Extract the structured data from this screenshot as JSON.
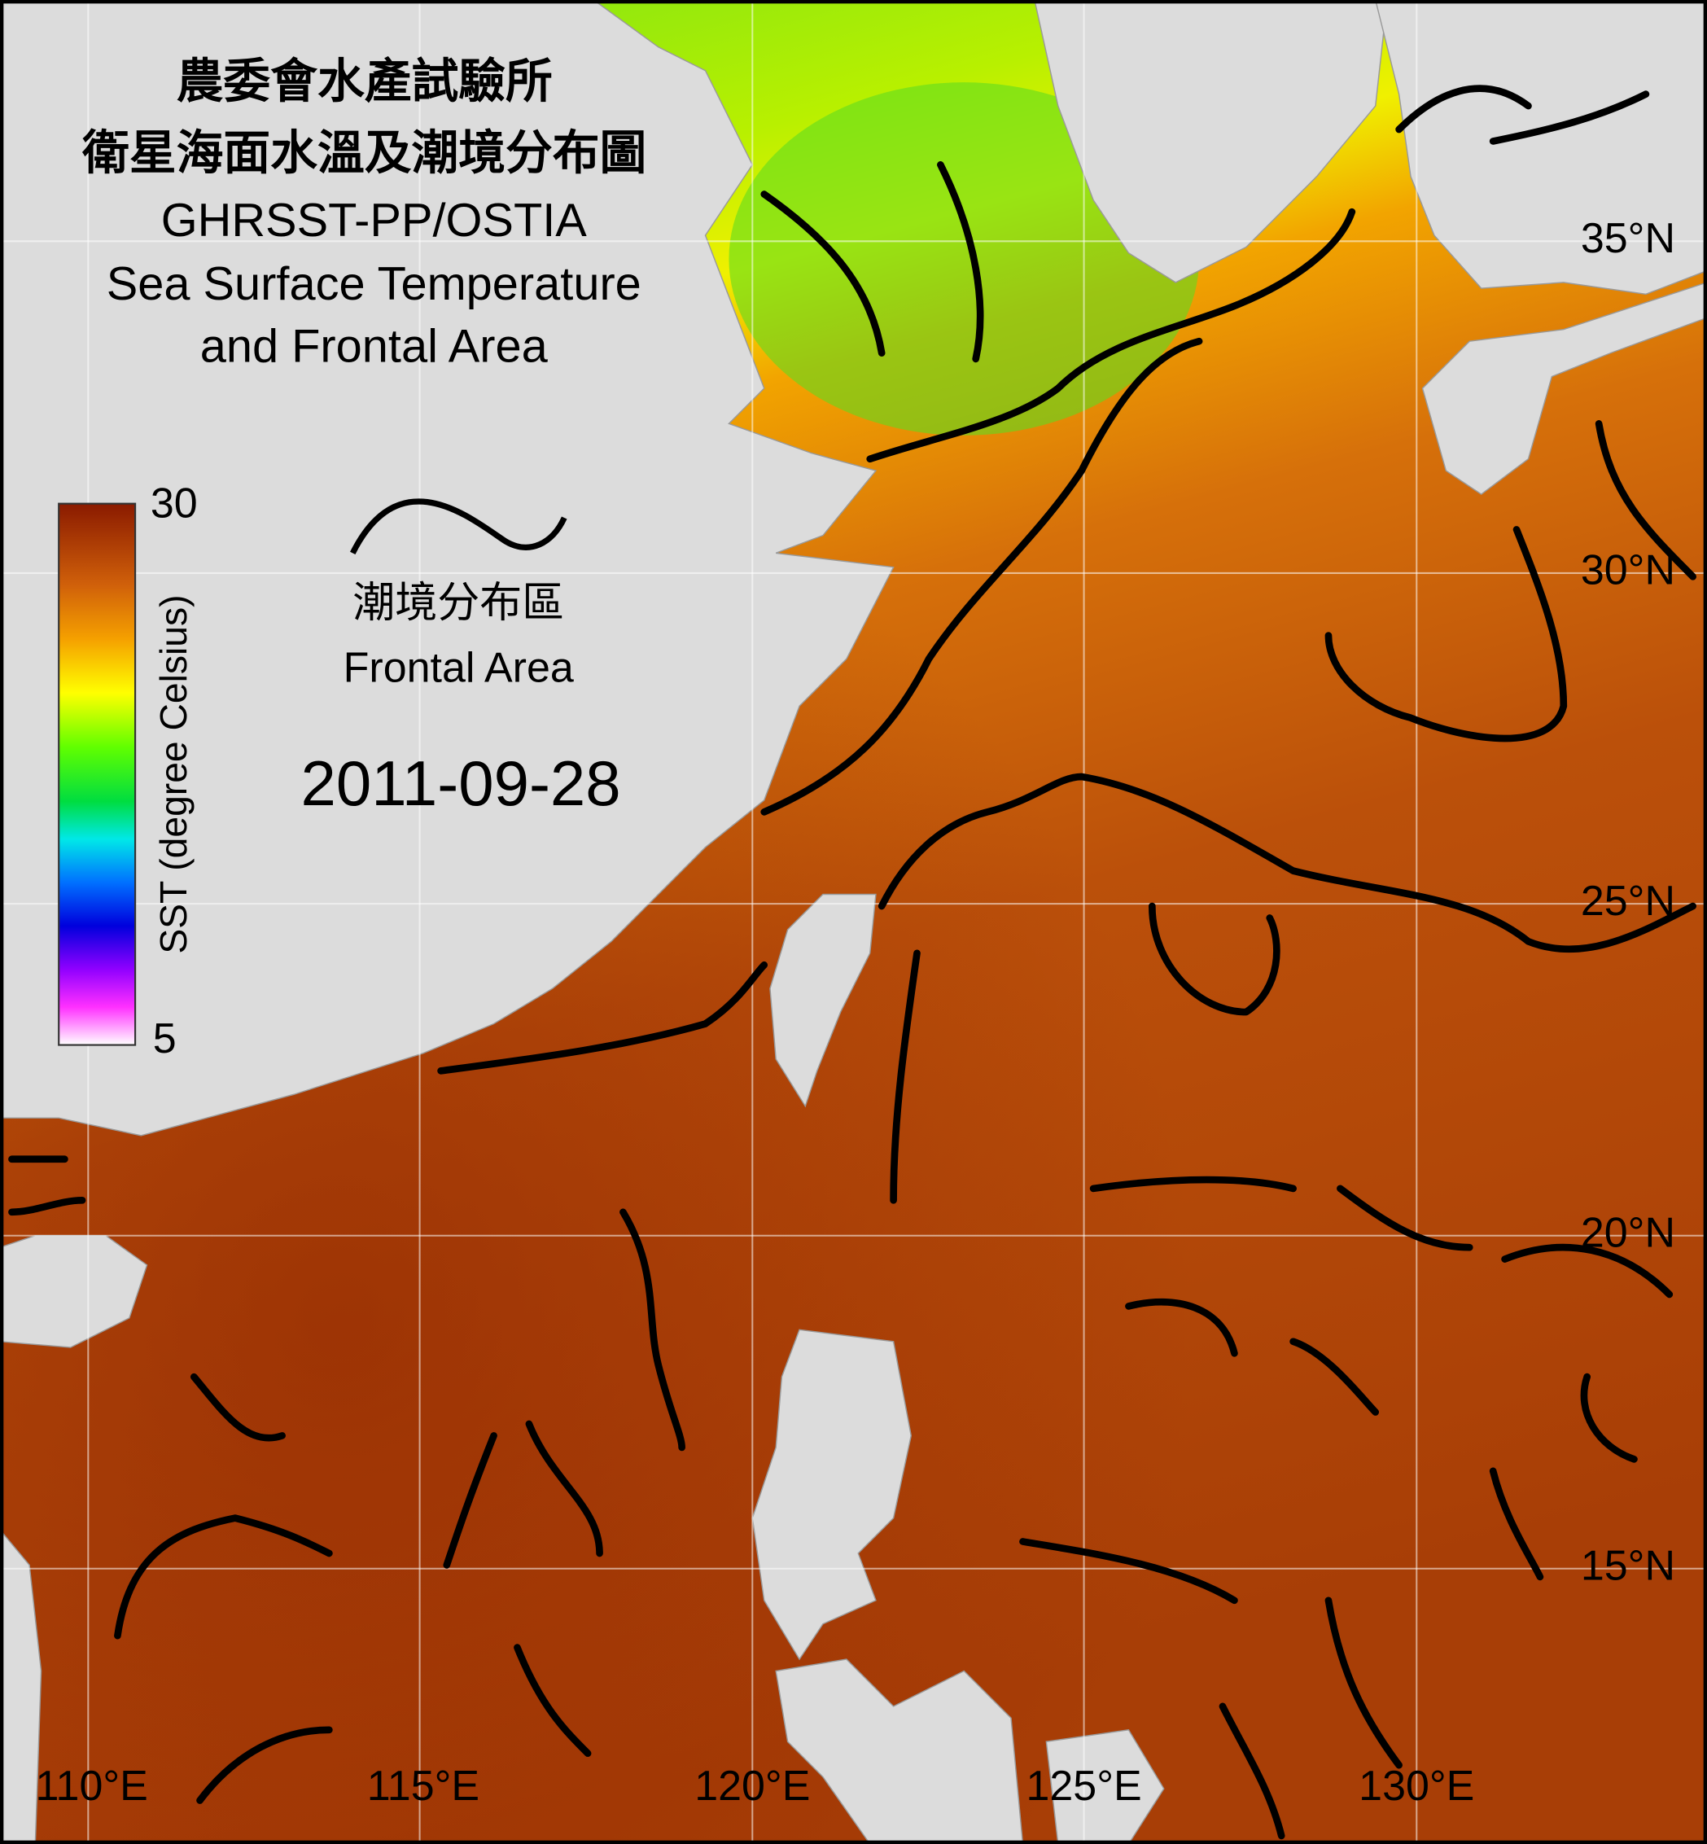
{
  "title": {
    "line1": "農委會水產試驗所",
    "line2": "衛星海面水溫及潮境分布圖",
    "line3": "GHRSST-PP/OSTIA",
    "line4": "Sea Surface Temperature",
    "line5": "and Frontal Area"
  },
  "colorbar": {
    "label": "SST (degree Celsius)",
    "max": "30",
    "min": "5"
  },
  "legend": {
    "zh": "潮境分布區",
    "en": "Frontal Area"
  },
  "date": "2011-09-28",
  "lat_labels": [
    "35°N",
    "30°N",
    "25°N",
    "20°N",
    "15°N"
  ],
  "lon_labels": [
    "110°E",
    "115°E",
    "120°E",
    "125°E",
    "130°E"
  ]
}
